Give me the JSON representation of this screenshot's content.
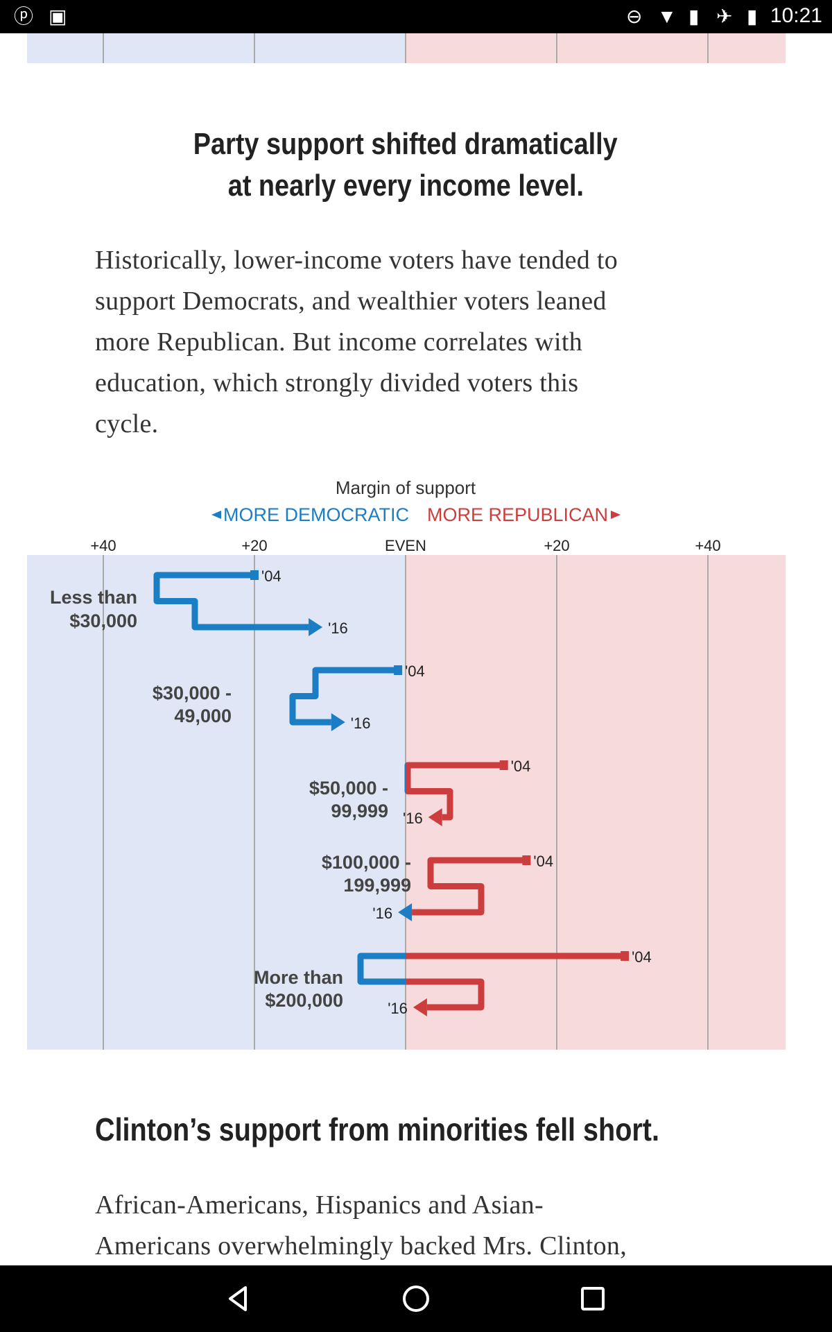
{
  "status_bar": {
    "left_icons": [
      "pinterest-icon",
      "play-store-bag-icon"
    ],
    "right_icons": [
      "do-not-disturb-icon",
      "wifi-icon",
      "no-sim-icon",
      "airplane-mode-icon",
      "battery-icon"
    ],
    "time": "10:21"
  },
  "article": {
    "heading_lines": [
      "Party support shifted dramatically",
      "at nearly every income level."
    ],
    "paragraph_lines": [
      "Historically, lower-income voters have tended to",
      "support Democrats, and wealthier voters leaned",
      "more Republican. But income correlates with",
      "education, which strongly divided voters this",
      "cycle."
    ],
    "heading2": "Clinton’s support from minorities fell short.",
    "paragraph2_lines": [
      "African-Americans, Hispanics and Asian-",
      "Americans overwhelmingly backed Mrs. Clinton,"
    ]
  },
  "chart_data": {
    "type": "line",
    "title": "Margin of support",
    "legend_left": "MORE DEMOCRATIC",
    "legend_right": "MORE REPUBLICAN",
    "colors": {
      "democratic": "#1b7dc3",
      "republican": "#cc3e3e",
      "dem_bg": "#e1e6f7",
      "rep_bg": "#f6dadc"
    },
    "x_ticks": [
      {
        "value": -40,
        "label": "+40"
      },
      {
        "value": -20,
        "label": "+20"
      },
      {
        "value": 0,
        "label": "EVEN"
      },
      {
        "value": 20,
        "label": "+20"
      },
      {
        "value": 40,
        "label": "+40"
      }
    ],
    "xlim": [
      -50,
      50
    ],
    "grid": true,
    "start_label": "'04",
    "end_label": "'16",
    "rows": [
      {
        "label_lines": [
          "Less than",
          "$30,000"
        ],
        "margin_2004": -20,
        "margin_2016": -11
      },
      {
        "label_lines": [
          "$30,000 -",
          "49,000"
        ],
        "margin_2004": -1,
        "margin_2016": -8
      },
      {
        "label_lines": [
          "$50,000 -",
          "99,999"
        ],
        "margin_2004": 13,
        "margin_2016": 3
      },
      {
        "label_lines": [
          "$100,000 -",
          "199,999"
        ],
        "margin_2004": 16,
        "margin_2016": -1
      },
      {
        "label_lines": [
          "More than",
          "$200,000"
        ],
        "margin_2004": 29,
        "margin_2016": 1
      }
    ]
  },
  "nav_bar": {
    "icons": [
      "back-icon",
      "home-icon",
      "recents-icon"
    ]
  }
}
